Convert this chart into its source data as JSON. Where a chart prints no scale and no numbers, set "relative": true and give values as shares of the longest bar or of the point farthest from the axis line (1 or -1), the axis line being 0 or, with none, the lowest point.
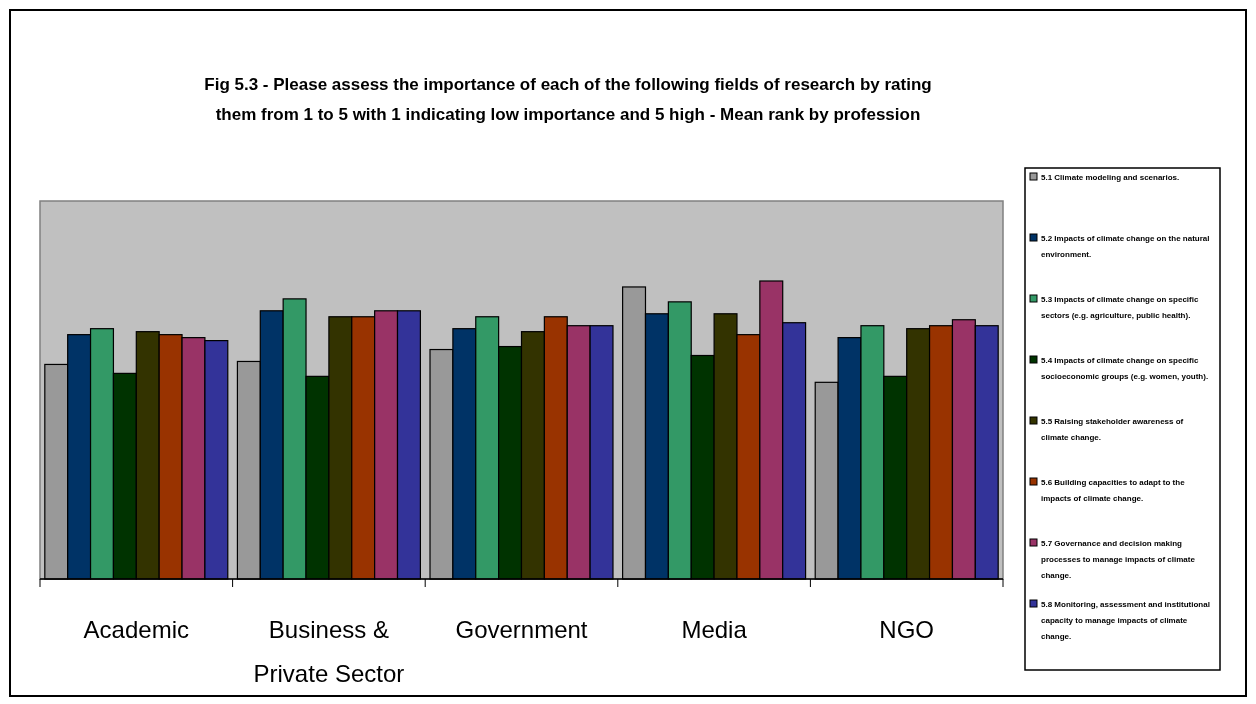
{
  "chart_data": {
    "type": "bar",
    "title": "Fig 5.3 - Please assess the importance of each of the following fields of research by rating them from 1 to 5 with 1 indicating low importance and 5 high - Mean rank by profession",
    "categories": [
      "Academic",
      "Business & Private Sector",
      "Government",
      "Media",
      "NGO"
    ],
    "relative": true,
    "legend": "right",
    "series": [
      {
        "name": "5.1 Climate modeling and scenarios.",
        "color": "#999999",
        "values": [
          0.72,
          0.73,
          0.77,
          0.98,
          0.66
        ]
      },
      {
        "name": "5.2 Impacts of climate change on the natural environment.",
        "color": "#003366",
        "values": [
          0.82,
          0.9,
          0.84,
          0.89,
          0.81
        ]
      },
      {
        "name": "5.3 Impacts of climate change on specific sectors (e.g. agriculture, public health).",
        "color": "#339966",
        "values": [
          0.84,
          0.94,
          0.88,
          0.93,
          0.85
        ]
      },
      {
        "name": "5.4 Impacts of climate change on specific socioeconomic groups (e.g. women, youth).",
        "color": "#003300",
        "values": [
          0.69,
          0.68,
          0.78,
          0.75,
          0.68
        ]
      },
      {
        "name": "5.5 Raising stakeholder awareness of climate change.",
        "color": "#333300",
        "values": [
          0.83,
          0.88,
          0.83,
          0.89,
          0.84
        ]
      },
      {
        "name": "5.6 Building capacities to adapt to the impacts of climate change.",
        "color": "#993300",
        "values": [
          0.82,
          0.88,
          0.88,
          0.82,
          0.85
        ]
      },
      {
        "name": "5.7 Governance and decision making processes to manage impacts of climate change.",
        "color": "#993366",
        "values": [
          0.81,
          0.9,
          0.85,
          1,
          0.87
        ]
      },
      {
        "name": "5.8 Monitoring, assessment and institutional capacity to manage impacts of climate change.",
        "color": "#333399",
        "values": [
          0.8,
          0.9,
          0.85,
          0.86,
          0.85
        ]
      }
    ]
  }
}
